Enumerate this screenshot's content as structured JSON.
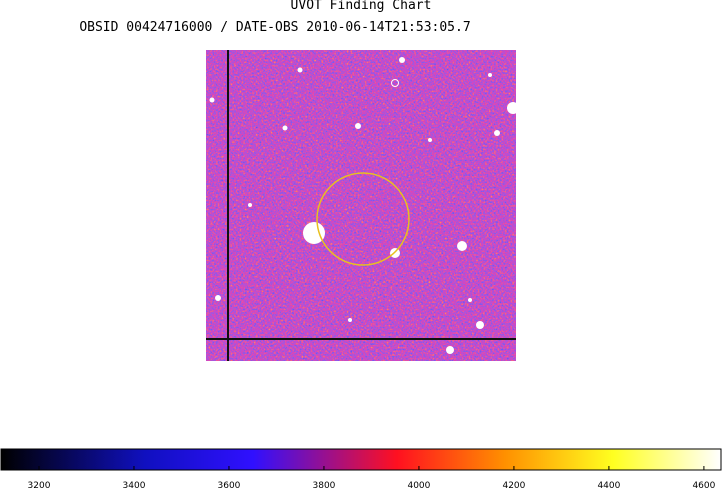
{
  "title": "UVOT Finding Chart",
  "subtitle": "OBSID 00424716000 / DATE-OBS 2010-06-14T21:53:05.7",
  "colorbar": {
    "range": [
      3120,
      4636
    ],
    "ticks": [
      3200,
      3400,
      3600,
      3800,
      4000,
      4200,
      4400,
      4600
    ]
  }
}
